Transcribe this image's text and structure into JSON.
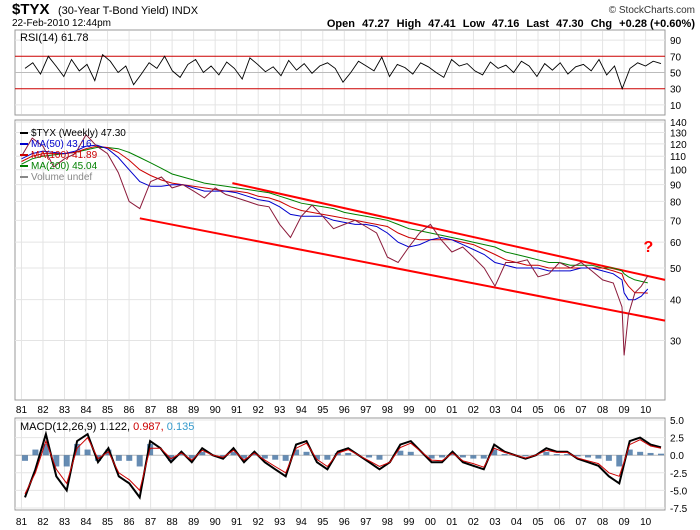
{
  "header": {
    "symbol": "$TYX",
    "name": "(30-Year T-Bond Yield)",
    "exchange": "INDX",
    "date": "22-Feb-2010 12:44pm",
    "copyright": "© StockCharts.com",
    "open_label": "Open",
    "open": "47.27",
    "high_label": "High",
    "high": "47.41",
    "low_label": "Low",
    "low": "47.16",
    "last_label": "Last",
    "last": "47.30",
    "chg_label": "Chg",
    "chg": "+0.28 (+0.60%)"
  },
  "colors": {
    "price": "#000000",
    "ma50": "#0000cc",
    "ma100": "#cc0000",
    "ma200": "#008000",
    "channel": "#ff0000",
    "hist": "#336699"
  },
  "chart_data": [
    {
      "type": "line",
      "title": "RSI(14) 61.78",
      "label": "RSI(14)",
      "value": "61.78",
      "ylim": [
        0,
        100
      ],
      "yticks": [
        "90",
        "70",
        "50",
        "30",
        "10"
      ],
      "series": [
        {
          "name": "RSI(14)",
          "values": [
            55,
            62,
            48,
            70,
            58,
            45,
            66,
            52,
            60,
            40,
            72,
            64,
            50,
            58,
            35,
            48,
            62,
            55,
            70,
            52,
            44,
            60,
            66,
            50,
            58,
            47,
            63,
            55,
            42,
            68,
            60,
            51,
            57,
            46,
            65,
            53,
            61,
            49,
            58,
            62,
            55,
            38,
            50,
            64,
            58,
            52,
            69,
            45,
            60,
            56,
            48,
            62,
            57,
            50,
            44,
            66,
            58,
            61,
            52,
            47,
            63,
            55,
            59,
            50,
            64,
            58,
            45,
            61,
            53,
            62,
            48,
            57,
            60,
            52,
            66,
            47,
            58,
            30,
            55,
            62,
            58,
            64,
            61
          ]
        }
      ]
    },
    {
      "type": "line",
      "title": "$TYX (Weekly) 47.30",
      "ylim": [
        20,
        140
      ],
      "yscale": "log",
      "yticks": [
        "140",
        "130",
        "120",
        "110",
        "100",
        "90",
        "80",
        "70",
        "60",
        "50",
        "40",
        "30"
      ],
      "annotation": "?",
      "legend": [
        {
          "label": "$TYX (Weekly) 47.30",
          "color": "#000000"
        },
        {
          "label": "MA(50) 43.16",
          "color": "#0000cc"
        },
        {
          "label": "MA(100) 41.89",
          "color": "#cc0000"
        },
        {
          "label": "MA(200) 45.04",
          "color": "#008000"
        },
        {
          "label": "Volume undef",
          "color": "#888888"
        }
      ],
      "x": [
        1981,
        1981.5,
        1982,
        1982.5,
        1983,
        1983.5,
        1984,
        1984.5,
        1985,
        1985.5,
        1986,
        1986.5,
        1987,
        1987.5,
        1988,
        1988.5,
        1989,
        1989.5,
        1990,
        1990.5,
        1991,
        1991.5,
        1992,
        1992.5,
        1993,
        1993.5,
        1994,
        1994.5,
        1995,
        1995.5,
        1996,
        1996.5,
        1997,
        1997.5,
        1998,
        1998.5,
        1999,
        1999.5,
        2000,
        2000.5,
        2001,
        2001.5,
        2002,
        2002.5,
        2003,
        2003.5,
        2004,
        2004.5,
        2005,
        2005.5,
        2006,
        2006.5,
        2007,
        2007.5,
        2008,
        2008.5,
        2008.9,
        2009,
        2009.2,
        2009.5,
        2009.8,
        2010.1
      ],
      "series": [
        {
          "name": "$TYX",
          "values": [
            110,
            125,
            118,
            102,
            108,
            112,
            128,
            118,
            112,
            98,
            80,
            76,
            92,
            95,
            88,
            90,
            86,
            82,
            88,
            84,
            82,
            80,
            78,
            77,
            68,
            62,
            72,
            78,
            72,
            66,
            68,
            70,
            67,
            64,
            54,
            52,
            58,
            64,
            68,
            61,
            56,
            58,
            54,
            50,
            44,
            52,
            52,
            53,
            47,
            48,
            52,
            50,
            52,
            49,
            46,
            45,
            38,
            27,
            36,
            42,
            44,
            47.3
          ]
        },
        {
          "name": "MA(50)",
          "values": [
            108,
            112,
            114,
            113,
            112,
            114,
            118,
            119,
            116,
            109,
            100,
            92,
            89,
            89,
            90,
            90,
            88,
            86,
            86,
            86,
            85,
            83,
            81,
            80,
            77,
            73,
            72,
            72,
            72,
            70,
            69,
            68,
            68,
            67,
            64,
            60,
            58,
            59,
            61,
            62,
            61,
            59,
            57,
            55,
            52,
            51,
            50,
            50,
            50,
            49,
            49,
            49,
            50,
            50,
            49,
            48,
            46,
            42,
            40,
            40,
            41,
            43.16
          ]
        },
        {
          "name": "MA(100)",
          "values": [
            106,
            110,
            112,
            112,
            112,
            113,
            116,
            118,
            117,
            113,
            107,
            100,
            96,
            93,
            91,
            90,
            89,
            88,
            87,
            86,
            86,
            85,
            83,
            82,
            80,
            77,
            75,
            74,
            73,
            72,
            71,
            70,
            69,
            68,
            67,
            64,
            62,
            61,
            61,
            61,
            61,
            60,
            59,
            57,
            55,
            53,
            52,
            51,
            51,
            50,
            50,
            50,
            50,
            50,
            50,
            49,
            48,
            46,
            44,
            42,
            42,
            41.89
          ]
        },
        {
          "name": "MA(200)",
          "values": [
            104,
            108,
            110,
            111,
            112,
            113,
            115,
            117,
            117,
            116,
            113,
            109,
            105,
            101,
            97,
            95,
            93,
            91,
            90,
            89,
            88,
            87,
            86,
            85,
            83,
            81,
            79,
            78,
            77,
            76,
            74,
            73,
            72,
            71,
            70,
            68,
            66,
            65,
            64,
            63,
            62,
            61,
            60,
            59,
            58,
            56,
            55,
            54,
            53,
            52,
            52,
            51,
            51,
            51,
            50,
            50,
            49,
            48,
            47,
            46,
            45.5,
            45.04
          ]
        }
      ],
      "channel": {
        "upper": {
          "x": [
            1990.8,
            2010.9
          ],
          "values": [
            91,
            46
          ]
        },
        "lower": {
          "x": [
            1986.5,
            2010.9
          ],
          "values": [
            71,
            34.5
          ]
        }
      }
    },
    {
      "type": "line",
      "title": "MACD(12,26,9) 1.122, 0.987, 0.135",
      "label": "MACD(12,26,9)",
      "values_text": [
        "1.122,",
        "0.987,",
        "0.135"
      ],
      "ylim": [
        -7.5,
        5.0
      ],
      "yticks": [
        "5.0",
        "2.5",
        "0.0",
        "-2.5",
        "-5.0",
        "-7.5"
      ],
      "series": [
        {
          "name": "MACD",
          "values": [
            -6,
            -2,
            3,
            -3,
            -5,
            2,
            3,
            -1,
            1,
            -3,
            -4,
            -6,
            2,
            1,
            -1,
            0.5,
            -1,
            1,
            0,
            -0.5,
            1,
            -1,
            0.5,
            -1,
            -2,
            -3,
            1.5,
            2,
            -1,
            -2,
            0.5,
            1,
            0,
            -1,
            -2,
            -1,
            1.5,
            2,
            0.5,
            -1,
            -1,
            0.5,
            -1,
            -1.5,
            -2,
            1.5,
            0.5,
            0,
            -0.5,
            0,
            1,
            0.5,
            0.5,
            -0.5,
            -1,
            -1.5,
            -3,
            -4,
            2,
            2.5,
            1.5,
            1.122
          ]
        },
        {
          "name": "Signal",
          "values": [
            -5.5,
            -2.5,
            2,
            -2,
            -4,
            1,
            2.5,
            -0.5,
            0.5,
            -2.5,
            -3.5,
            -5,
            1,
            1,
            -0.5,
            0.3,
            -0.7,
            0.7,
            0,
            -0.3,
            0.7,
            -0.7,
            0.3,
            -0.7,
            -1.6,
            -2.5,
            1,
            1.7,
            -0.6,
            -1.6,
            0.3,
            0.8,
            0,
            -0.8,
            -1.6,
            -1,
            1.1,
            1.7,
            0.5,
            -0.7,
            -0.8,
            0.3,
            -0.8,
            -1.2,
            -1.7,
            1,
            0.4,
            0,
            -0.4,
            0,
            0.7,
            0.4,
            0.4,
            -0.4,
            -0.8,
            -1.2,
            -2.5,
            -3,
            1.5,
            2.2,
            1.3,
            0.987
          ]
        }
      ],
      "histogram": {
        "name": "Histogram",
        "value": 0.135
      }
    }
  ],
  "x_axis": {
    "labels": [
      "81",
      "82",
      "83",
      "84",
      "85",
      "86",
      "87",
      "88",
      "89",
      "90",
      "91",
      "92",
      "93",
      "94",
      "95",
      "96",
      "97",
      "98",
      "99",
      "00",
      "01",
      "02",
      "03",
      "04",
      "05",
      "06",
      "07",
      "08",
      "09",
      "10"
    ]
  }
}
